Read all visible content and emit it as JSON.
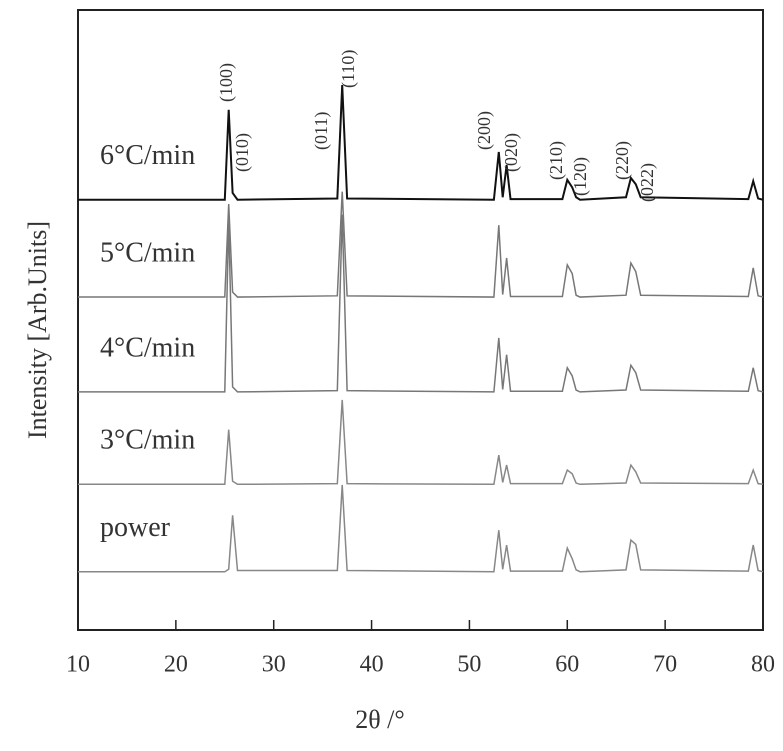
{
  "chart_data": {
    "type": "line",
    "xlabel": "2θ /°",
    "ylabel": "Intensity [Arb.Units]",
    "x": [
      10,
      25.0,
      25.4,
      25.8,
      26.3,
      36.5,
      37.0,
      37.5,
      52.5,
      53.0,
      53.4,
      53.8,
      54.2,
      59.5,
      60.0,
      60.5,
      60.9,
      61.3,
      66.0,
      66.5,
      67.0,
      67.5,
      78.5,
      79.0,
      79.5,
      80
    ],
    "series": [
      {
        "name": "6°C/min",
        "color": "#111111",
        "values": [
          69.4,
          69.4,
          83.9,
          70.5,
          69.4,
          69.6,
          87.9,
          69.6,
          69.4,
          77.1,
          69.8,
          75.0,
          69.5,
          69.5,
          72.6,
          71.4,
          69.8,
          69.4,
          69.8,
          72.9,
          71.9,
          69.8,
          69.5,
          72.4,
          69.6,
          69.4
        ]
      },
      {
        "name": "5°C/min",
        "color": "#777777",
        "values": [
          53.7,
          53.7,
          68.7,
          54.5,
          53.7,
          53.9,
          70.7,
          53.9,
          53.7,
          65.3,
          54.1,
          60.0,
          53.8,
          53.8,
          58.9,
          57.5,
          54.0,
          53.7,
          54.0,
          59.2,
          57.8,
          54.0,
          53.8,
          58.4,
          53.9,
          53.7
        ]
      },
      {
        "name": "4°C/min",
        "color": "#777777",
        "values": [
          38.4,
          38.4,
          66.0,
          39.2,
          38.4,
          38.6,
          67.0,
          38.6,
          38.4,
          47.1,
          38.8,
          44.4,
          38.5,
          38.5,
          42.3,
          41.0,
          38.7,
          38.4,
          38.7,
          42.7,
          41.5,
          38.7,
          38.5,
          42.3,
          38.6,
          38.4
        ]
      },
      {
        "name": "3°C/min",
        "color": "#888888",
        "values": [
          23.5,
          23.5,
          32.3,
          24.0,
          23.5,
          23.6,
          37.1,
          23.6,
          23.5,
          28.2,
          23.8,
          26.6,
          23.6,
          23.6,
          25.8,
          25.2,
          23.7,
          23.5,
          23.7,
          26.6,
          25.5,
          23.7,
          23.6,
          25.8,
          23.6,
          23.5
        ]
      },
      {
        "name": "power",
        "color": "#888888",
        "values": [
          9.4,
          9.4,
          9.8,
          18.5,
          9.6,
          9.6,
          23.4,
          9.6,
          9.4,
          16.1,
          9.8,
          13.7,
          9.5,
          9.5,
          13.2,
          11.5,
          9.7,
          9.4,
          9.7,
          14.5,
          13.8,
          9.7,
          9.5,
          13.7,
          9.6,
          9.4
        ]
      }
    ],
    "annotations": [
      "(100)",
      "(010)",
      "(011)",
      "(110)",
      "(200)",
      "(020)",
      "(210)",
      "(120)",
      "(220)",
      "(022)"
    ],
    "xlim": [
      10,
      80
    ],
    "xticks": [
      10,
      20,
      30,
      40,
      50,
      60,
      70,
      80
    ],
    "ylim": [
      0,
      100
    ]
  }
}
